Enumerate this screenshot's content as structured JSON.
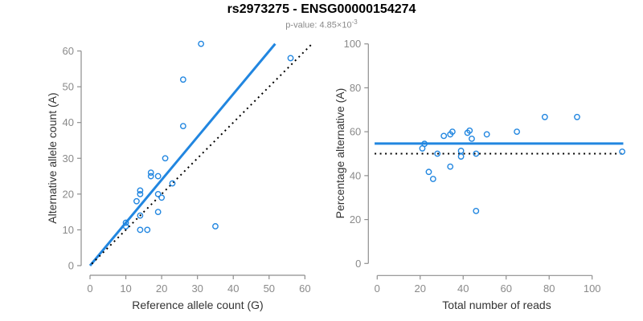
{
  "header": {
    "title": "rs2973275 - ENSG00000154274",
    "subtitle_main": "p-value: 4.85×10",
    "subtitle_exponent": "-3"
  },
  "colors": {
    "accent": "#2186e0",
    "axis": "#8e8e8e",
    "tick_label": "#8a8a8a",
    "axis_title": "#333333",
    "line_dotted": "#000000",
    "title": "#000000",
    "subtitle": "#8a8a8a"
  },
  "chart_data": [
    {
      "type": "scatter",
      "title": "rs2973275 - ENSG00000154274",
      "subtitle": "p-value: 4.85×10-3",
      "xlabel": "Reference allele count (G)",
      "ylabel": "Alternative allele count (A)",
      "xlim": [
        0,
        62.4
      ],
      "ylim": [
        0,
        62.4
      ],
      "xticks": [
        0,
        10,
        20,
        30,
        40,
        50,
        60
      ],
      "yticks": [
        0,
        10,
        20,
        30,
        40,
        50,
        60
      ],
      "grid": false,
      "legend": false,
      "points": [
        [
          10,
          11
        ],
        [
          10,
          12
        ],
        [
          13,
          18
        ],
        [
          14,
          10
        ],
        [
          14,
          14
        ],
        [
          14,
          20
        ],
        [
          14,
          21
        ],
        [
          16,
          10
        ],
        [
          17,
          25
        ],
        [
          17,
          26
        ],
        [
          19,
          15
        ],
        [
          19,
          20
        ],
        [
          19,
          25
        ],
        [
          20,
          19
        ],
        [
          21,
          30
        ],
        [
          23,
          23
        ],
        [
          26,
          39
        ],
        [
          26,
          52
        ],
        [
          31,
          62
        ],
        [
          35,
          11
        ],
        [
          56,
          58
        ]
      ],
      "lines": [
        {
          "name": "fit-line",
          "style": "solid",
          "from": [
            0,
            0
          ],
          "to": [
            51.7,
            62
          ],
          "desc": "fitted proportion y = 1.2x"
        },
        {
          "name": "identity-line",
          "style": "dotted",
          "from": [
            0.5,
            0.5
          ],
          "to": [
            62,
            62
          ],
          "desc": "identity y = x"
        }
      ]
    },
    {
      "type": "scatter",
      "xlabel": "Total number of reads",
      "ylabel": "Percentage alternative (A)",
      "xlim": [
        0,
        114.5
      ],
      "ylim": [
        0,
        100
      ],
      "xticks": [
        0,
        20,
        40,
        60,
        80,
        100
      ],
      "yticks": [
        0,
        20,
        40,
        60,
        80,
        100
      ],
      "grid": false,
      "legend": false,
      "points": [
        [
          21,
          52.4
        ],
        [
          22,
          54.5
        ],
        [
          24,
          41.7
        ],
        [
          26,
          38.5
        ],
        [
          28,
          50
        ],
        [
          31,
          58.1
        ],
        [
          34,
          44.1
        ],
        [
          34,
          58.8
        ],
        [
          35,
          60
        ],
        [
          39,
          48.7
        ],
        [
          39,
          51.3
        ],
        [
          42,
          59.5
        ],
        [
          43,
          60.5
        ],
        [
          44,
          56.8
        ],
        [
          46,
          23.9
        ],
        [
          46,
          50
        ],
        [
          51,
          58.8
        ],
        [
          65,
          60
        ],
        [
          78,
          66.7
        ],
        [
          93,
          66.7
        ],
        [
          114,
          50.9
        ]
      ],
      "lines": [
        {
          "name": "mean-line",
          "style": "solid",
          "from": [
            -1.2,
            54.6
          ],
          "to": [
            114.5,
            54.6
          ],
          "desc": "overall alternative percentage 54.6%"
        },
        {
          "name": "null-line",
          "style": "dotted",
          "from": [
            -1.2,
            50
          ],
          "to": [
            114.5,
            50
          ],
          "desc": "50% null expectation"
        }
      ]
    }
  ]
}
